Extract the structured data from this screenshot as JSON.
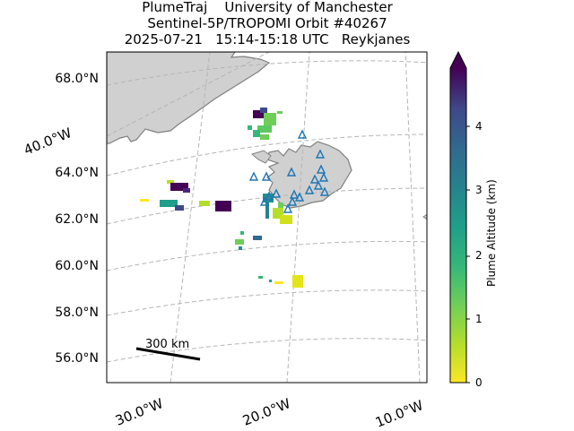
{
  "title": {
    "line1": "PlumeTraj    University of Manchester",
    "line2": "Sentinel-5P/TROPOMI Orbit #40267",
    "line3": "2025-07-21   15:14-15:18 UTC   Reykjanes"
  },
  "latitude_labels": [
    "68.0°N",
    "64.0°N",
    "62.0°N",
    "60.0°N",
    "58.0°N",
    "56.0°N"
  ],
  "longitude_labels": [
    "40.0°W",
    "30.0°W",
    "20.0°W",
    "10.0°W"
  ],
  "colorbar": {
    "label": "Plume Altitude (km)",
    "ticks": [
      "0",
      "1",
      "2",
      "3",
      "4"
    ],
    "range_km": [
      0,
      5
    ],
    "colormap": "viridis (reversed)",
    "extend": "max"
  },
  "scale_bar": {
    "label": "300 km"
  },
  "colors": {
    "land": "#d0d0d0",
    "coastline": "#808080",
    "gridline": "#b5b5b5",
    "volcano_marker": "#1f77b4",
    "high_plume": "#440154",
    "low_plume": "#fde725"
  },
  "chart_data": {
    "type": "map",
    "grid": "dashed lat/lon graticule",
    "plume_altitude_scale_km": [
      0,
      5
    ],
    "marker_symbol": "open triangle (volcanoes)"
  }
}
